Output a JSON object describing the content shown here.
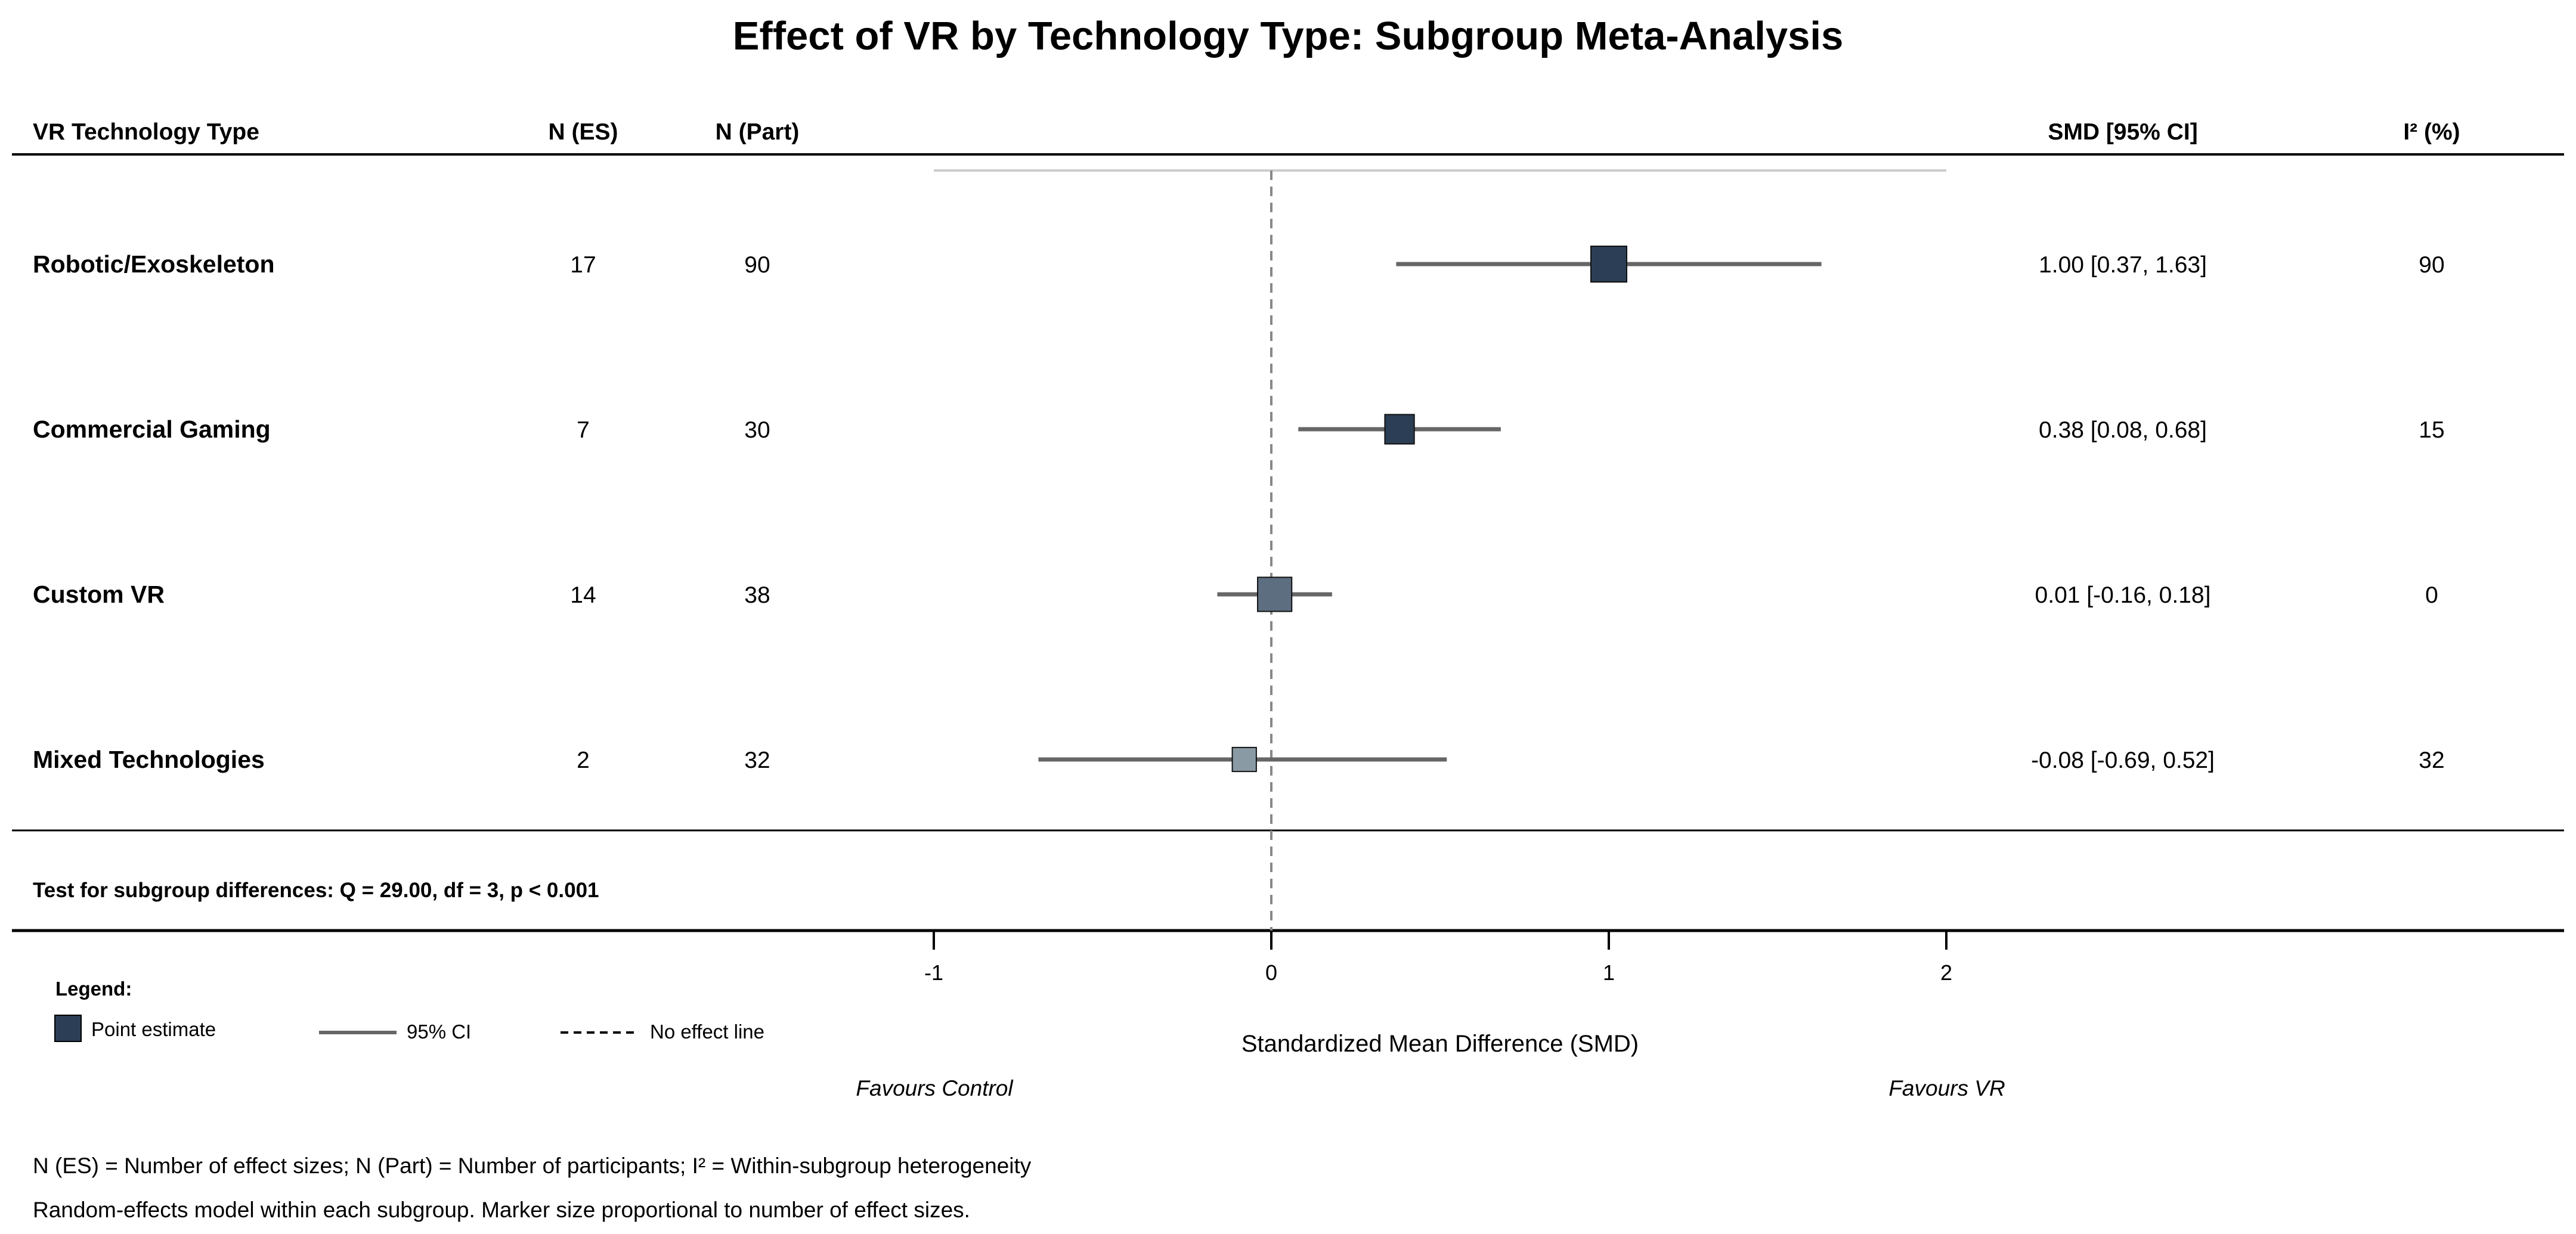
{
  "chart_data": {
    "type": "forest",
    "title": "Effect of VR by Technology Type: Subgroup Meta-Analysis",
    "columns": {
      "label": "VR Technology Type",
      "n_es": "N (ES)",
      "n_part": "N (Part)",
      "smd_ci": "SMD [95% CI]",
      "i2": "I² (%)"
    },
    "rows": [
      {
        "label": "Robotic/Exoskeleton",
        "n_es": "17",
        "n_part": "90",
        "smd": 1.0,
        "lower": 0.37,
        "upper": 1.63,
        "smd_ci": "1.00 [0.37, 1.63]",
        "i2": "90",
        "marker_color": "#2c3e55"
      },
      {
        "label": "Commercial Gaming",
        "n_es": "7",
        "n_part": "30",
        "smd": 0.38,
        "lower": 0.08,
        "upper": 0.68,
        "smd_ci": "0.38 [0.08, 0.68]",
        "i2": "15",
        "marker_color": "#2c3e55"
      },
      {
        "label": "Custom VR",
        "n_es": "14",
        "n_part": "38",
        "smd": 0.01,
        "lower": -0.16,
        "upper": 0.18,
        "smd_ci": "0.01 [-0.16, 0.18]",
        "i2": "0",
        "marker_color": "#5c6e80"
      },
      {
        "label": "Mixed Technologies",
        "n_es": "2",
        "n_part": "32",
        "smd": -0.08,
        "lower": -0.69,
        "upper": 0.52,
        "smd_ci": "-0.08 [-0.69, 0.52]",
        "i2": "32",
        "marker_color": "#8a9aa4"
      }
    ],
    "xlim": [
      -1,
      2
    ],
    "xticks": [
      -1,
      0,
      1,
      2
    ],
    "xtick_labels": [
      "-1",
      "0",
      "1",
      "2"
    ],
    "null_value": 0,
    "xlabel": "Standardized Mean Difference (SMD)",
    "favours_left": "Favours Control",
    "favours_right": "Favours VR",
    "test_text": "Test for subgroup differences: Q = 29.00, df = 3, p < 0.001",
    "legend": {
      "title": "Legend:",
      "point": "Point estimate",
      "ci": "95% CI",
      "null": "No effect line",
      "position": "bottom-left"
    },
    "footnotes": [
      "N (ES) = Number of effect sizes; N (Part) = Number of participants; I² = Within-subgroup heterogeneity",
      "Random-effects model within each subgroup. Marker size proportional to number of effect sizes."
    ],
    "colors": {
      "ci_line": "#666666",
      "null_line": "#888888",
      "range_line": "#cccccc",
      "rule": "#000000"
    }
  }
}
